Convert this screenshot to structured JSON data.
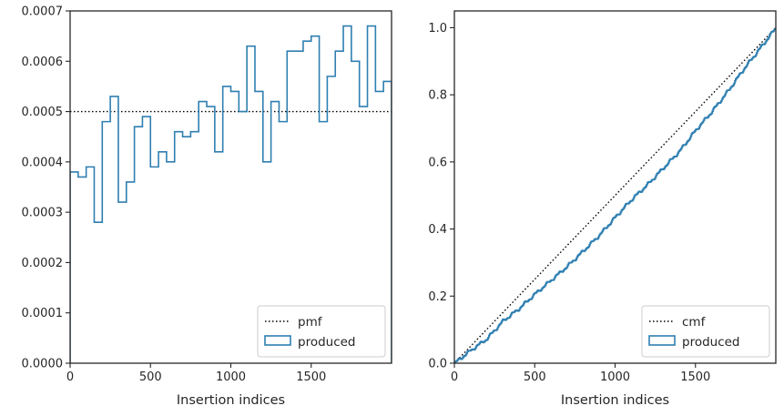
{
  "colors": {
    "series": "#2f7fb1",
    "reference": "#000000",
    "axes": "#262626",
    "legend_border": "#cccccc"
  },
  "chart_data": [
    {
      "type": "line",
      "subtype": "step-histogram",
      "xlabel": "Insertion indices",
      "ylabel": "",
      "xlim": [
        0,
        2000
      ],
      "ylim": [
        0,
        0.0007
      ],
      "xticks": [
        0,
        500,
        1000,
        1500
      ],
      "xtick_labels": [
        "0",
        "500",
        "1000",
        "1500"
      ],
      "yticks": [
        0,
        0.0001,
        0.0002,
        0.0003,
        0.0004,
        0.0005,
        0.0006,
        0.0007
      ],
      "ytick_labels": [
        "0.0000",
        "0.0001",
        "0.0002",
        "0.0003",
        "0.0004",
        "0.0005",
        "0.0006",
        "0.0007"
      ],
      "grid": false,
      "legend": "lower-right",
      "bin_edges": [
        0,
        50,
        100,
        150,
        200,
        250,
        300,
        350,
        400,
        450,
        500,
        550,
        600,
        650,
        700,
        750,
        800,
        850,
        900,
        950,
        1000,
        1050,
        1100,
        1150,
        1200,
        1250,
        1300,
        1350,
        1400,
        1450,
        1500,
        1550,
        1600,
        1650,
        1700,
        1750,
        1800,
        1850,
        1900,
        1950,
        2000
      ],
      "series": [
        {
          "name": "pmf",
          "style": "dotted",
          "x": [
            0,
            2000
          ],
          "y": [
            0.0005,
            0.0005
          ]
        },
        {
          "name": "produced",
          "style": "step",
          "values": [
            0.00038,
            0.00037,
            0.00039,
            0.00028,
            0.00048,
            0.00053,
            0.00032,
            0.00036,
            0.00047,
            0.00049,
            0.00039,
            0.00042,
            0.0004,
            0.00046,
            0.00045,
            0.00046,
            0.00052,
            0.00051,
            0.00042,
            0.00055,
            0.00054,
            0.0005,
            0.00063,
            0.00054,
            0.0004,
            0.00052,
            0.00048,
            0.00062,
            0.00062,
            0.00064,
            0.00065,
            0.00048,
            0.00057,
            0.00062,
            0.00067,
            0.0006,
            0.00051,
            0.00067,
            0.00054,
            0.00056
          ]
        }
      ]
    },
    {
      "type": "line",
      "subtype": "cumulative",
      "xlabel": "Insertion indices",
      "ylabel": "",
      "xlim": [
        0,
        2000
      ],
      "ylim": [
        0,
        1.05
      ],
      "xticks": [
        0,
        500,
        1000,
        1500
      ],
      "xtick_labels": [
        "0",
        "500",
        "1000",
        "1500"
      ],
      "yticks": [
        0,
        0.2,
        0.4,
        0.6,
        0.8,
        1.0
      ],
      "ytick_labels": [
        "0.0",
        "0.2",
        "0.4",
        "0.6",
        "0.8",
        "1.0"
      ],
      "grid": false,
      "legend": "lower-right",
      "series": [
        {
          "name": "cmf",
          "style": "dotted",
          "x": [
            0,
            2000
          ],
          "y": [
            0,
            1.0
          ]
        },
        {
          "name": "produced",
          "style": "step",
          "x": [
            0,
            100,
            200,
            300,
            400,
            500,
            600,
            700,
            800,
            900,
            1000,
            1100,
            1200,
            1300,
            1400,
            1500,
            1600,
            1700,
            1800,
            1900,
            2000
          ],
          "y": [
            0,
            0.038,
            0.072,
            0.125,
            0.162,
            0.206,
            0.247,
            0.288,
            0.334,
            0.381,
            0.435,
            0.487,
            0.532,
            0.582,
            0.632,
            0.694,
            0.749,
            0.81,
            0.877,
            0.938,
            1.0
          ]
        }
      ]
    }
  ]
}
